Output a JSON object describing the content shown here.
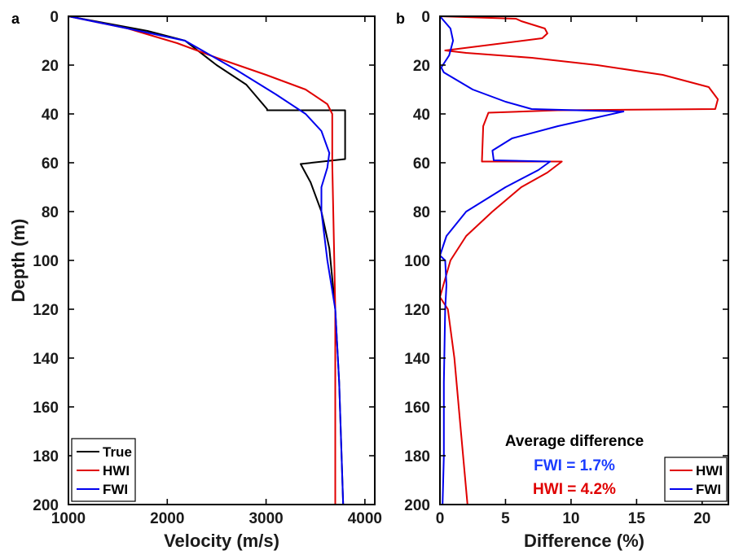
{
  "chart_data": [
    {
      "panel": "a",
      "type": "line",
      "xlabel": "Velocity (m/s)",
      "ylabel": "Depth (m)",
      "xlim": [
        1000,
        4100
      ],
      "ylim": [
        200,
        0
      ],
      "y_reversed": true,
      "xticks": [
        1000,
        2000,
        3000,
        4000
      ],
      "yticks": [
        0,
        20,
        40,
        60,
        80,
        100,
        120,
        140,
        160,
        180,
        200
      ],
      "legend_position": "bottom-left",
      "series": [
        {
          "name": "True",
          "color": "#000000",
          "points": [
            [
              1000,
              0
            ],
            [
              1400,
              3
            ],
            [
              1800,
              6
            ],
            [
              2180,
              10
            ],
            [
              2500,
              20
            ],
            [
              2800,
              28
            ],
            [
              3010,
              38
            ],
            [
              3010,
              38.5
            ],
            [
              3800,
              38.5
            ],
            [
              3800,
              58.5
            ],
            [
              3350,
              60.5
            ],
            [
              3450,
              68
            ],
            [
              3560,
              80
            ],
            [
              3640,
              95
            ],
            [
              3700,
              120
            ],
            [
              3740,
              150
            ],
            [
              3780,
              200
            ]
          ]
        },
        {
          "name": "HWI",
          "color": "#e00000",
          "points": [
            [
              1000,
              0
            ],
            [
              1600,
              5
            ],
            [
              2100,
              11
            ],
            [
              2500,
              17
            ],
            [
              3000,
              24
            ],
            [
              3400,
              30
            ],
            [
              3620,
              36
            ],
            [
              3670,
              40
            ],
            [
              3670,
              60
            ],
            [
              3690,
              100
            ],
            [
              3700,
              120
            ],
            [
              3700,
              160
            ],
            [
              3700,
              200
            ]
          ]
        },
        {
          "name": "FWI",
          "color": "#0000ee",
          "points": [
            [
              1000,
              0
            ],
            [
              1600,
              5
            ],
            [
              2180,
              10
            ],
            [
              2700,
              22
            ],
            [
              3100,
              32
            ],
            [
              3400,
              40
            ],
            [
              3560,
              47
            ],
            [
              3640,
              56
            ],
            [
              3620,
              62
            ],
            [
              3560,
              70
            ],
            [
              3560,
              80
            ],
            [
              3620,
              100
            ],
            [
              3700,
              120
            ],
            [
              3740,
              150
            ],
            [
              3780,
              200
            ]
          ]
        }
      ]
    },
    {
      "panel": "b",
      "type": "line",
      "xlabel": "Difference (%)",
      "ylabel": "",
      "xlim": [
        0,
        22
      ],
      "ylim": [
        200,
        0
      ],
      "y_reversed": true,
      "xticks": [
        0,
        5,
        10,
        15,
        20
      ],
      "yticks": [
        0,
        20,
        40,
        60,
        80,
        100,
        120,
        140,
        160,
        180,
        200
      ],
      "legend_position": "bottom-right",
      "annotation": {
        "title": "Average difference",
        "lines": [
          {
            "text": "FWI = 1.7%",
            "color": "#1a3cff"
          },
          {
            "text": "HWI = 4.2%",
            "color": "#e00000"
          }
        ]
      },
      "series": [
        {
          "name": "HWI",
          "color": "#e00000",
          "points": [
            [
              0,
              0
            ],
            [
              5.8,
              1
            ],
            [
              6.2,
              2
            ],
            [
              8,
              5
            ],
            [
              8.2,
              7
            ],
            [
              7.8,
              9
            ],
            [
              0.4,
              14
            ],
            [
              2,
              15
            ],
            [
              7,
              17
            ],
            [
              12,
              20
            ],
            [
              17,
              24
            ],
            [
              20.5,
              29
            ],
            [
              21.2,
              34
            ],
            [
              21,
              38
            ],
            [
              9,
              38.5
            ],
            [
              3.7,
              39.5
            ],
            [
              3.3,
              45
            ],
            [
              3.2,
              59.5
            ],
            [
              9.3,
              59.5
            ],
            [
              8.2,
              64
            ],
            [
              6.2,
              70
            ],
            [
              4,
              80
            ],
            [
              2,
              90
            ],
            [
              0.8,
              100
            ],
            [
              0,
              115
            ],
            [
              0.6,
              120
            ],
            [
              1.1,
              140
            ],
            [
              1.6,
              170
            ],
            [
              2.1,
              200
            ]
          ]
        },
        {
          "name": "FWI",
          "color": "#0000ee",
          "points": [
            [
              0,
              0
            ],
            [
              0.8,
              5
            ],
            [
              1,
              10
            ],
            [
              0.7,
              16
            ],
            [
              0.1,
              21
            ],
            [
              0.3,
              23
            ],
            [
              2.5,
              30
            ],
            [
              5,
              35
            ],
            [
              7,
              38
            ],
            [
              14,
              39
            ],
            [
              9,
              45
            ],
            [
              5.5,
              50
            ],
            [
              4,
              55
            ],
            [
              4.1,
              59
            ],
            [
              8.4,
              59.5
            ],
            [
              7.5,
              63
            ],
            [
              5,
              70
            ],
            [
              2,
              80
            ],
            [
              0.5,
              90
            ],
            [
              0,
              98
            ],
            [
              0.4,
              100
            ],
            [
              0.5,
              110
            ],
            [
              0.4,
              120
            ],
            [
              0.3,
              150
            ],
            [
              0.3,
              180
            ],
            [
              0.2,
              200
            ]
          ]
        }
      ]
    }
  ],
  "labels": {
    "panel_a": "a",
    "panel_b": "b"
  }
}
